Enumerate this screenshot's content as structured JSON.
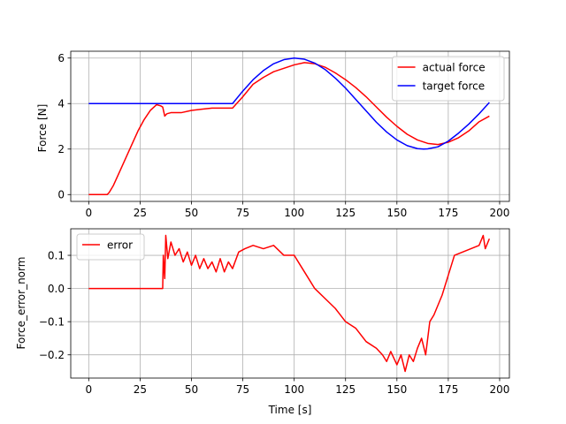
{
  "chart_data": [
    {
      "type": "line",
      "title": "",
      "xlabel": "",
      "ylabel": "Force [N]",
      "xlim": [
        -8.75,
        204.75
      ],
      "ylim": [
        -0.3,
        6.3
      ],
      "xticks": [
        0,
        25,
        50,
        75,
        100,
        125,
        150,
        175,
        200
      ],
      "yticks": [
        0,
        2,
        4,
        6
      ],
      "grid": true,
      "legend_position": "top-right",
      "series": [
        {
          "name": "actual force",
          "color": "#ff0000",
          "x": [
            0,
            5,
            9,
            10,
            12,
            15,
            18,
            21,
            24,
            27,
            30,
            33,
            35,
            36,
            37,
            38,
            40,
            45,
            50,
            55,
            60,
            65,
            70,
            75,
            80,
            85,
            90,
            95,
            100,
            105,
            110,
            115,
            120,
            125,
            130,
            135,
            140,
            145,
            150,
            155,
            160,
            165,
            170,
            175,
            180,
            185,
            190,
            195
          ],
          "y": [
            0,
            0,
            0,
            0.1,
            0.4,
            1.0,
            1.6,
            2.2,
            2.8,
            3.3,
            3.7,
            3.95,
            3.9,
            3.85,
            3.45,
            3.55,
            3.6,
            3.6,
            3.7,
            3.75,
            3.8,
            3.8,
            3.8,
            4.3,
            4.85,
            5.15,
            5.4,
            5.55,
            5.7,
            5.8,
            5.75,
            5.6,
            5.35,
            5.05,
            4.7,
            4.3,
            3.85,
            3.4,
            3.0,
            2.65,
            2.4,
            2.25,
            2.2,
            2.3,
            2.5,
            2.8,
            3.2,
            3.45
          ]
        },
        {
          "name": "target force",
          "color": "#0000ff",
          "x": [
            0,
            10,
            20,
            30,
            40,
            50,
            60,
            70,
            75,
            80,
            85,
            90,
            95,
            100,
            105,
            110,
            115,
            120,
            125,
            130,
            135,
            140,
            145,
            150,
            155,
            160,
            163,
            165,
            170,
            175,
            180,
            185,
            190,
            195
          ],
          "y": [
            4,
            4,
            4,
            4,
            4,
            4,
            4,
            4,
            4.55,
            5.05,
            5.45,
            5.75,
            5.93,
            6.0,
            5.95,
            5.78,
            5.5,
            5.12,
            4.68,
            4.18,
            3.68,
            3.18,
            2.75,
            2.4,
            2.15,
            2.02,
            2.0,
            2.01,
            2.1,
            2.35,
            2.7,
            3.1,
            3.55,
            4.05
          ]
        }
      ]
    },
    {
      "type": "line",
      "title": "",
      "xlabel": "Time [s]",
      "ylabel": "Force_error_norm",
      "xlim": [
        -8.75,
        204.75
      ],
      "ylim": [
        -0.27,
        0.18
      ],
      "xticks": [
        0,
        25,
        50,
        75,
        100,
        125,
        150,
        175,
        200
      ],
      "yticks": [
        -0.2,
        -0.1,
        0.0,
        0.1
      ],
      "ytick_labels": [
        "−0.2",
        "−0.1",
        "0.0",
        "0.1"
      ],
      "grid": true,
      "legend_position": "top-left",
      "series": [
        {
          "name": "error",
          "color": "#ff0000",
          "x": [
            0,
            36,
            36.3,
            37,
            37.5,
            38.5,
            40,
            42,
            44,
            46,
            48,
            50,
            52,
            54,
            56,
            58,
            60,
            62,
            64,
            66,
            68,
            70,
            73,
            76,
            80,
            85,
            90,
            95,
            100,
            103,
            106,
            110,
            115,
            120,
            125,
            130,
            135,
            140,
            143,
            145,
            147,
            150,
            152,
            154,
            156,
            158,
            160,
            162,
            164,
            166,
            168,
            170,
            172,
            175,
            178,
            182,
            186,
            190,
            192,
            193,
            195
          ],
          "y": [
            0,
            0,
            0.1,
            0.03,
            0.16,
            0.09,
            0.14,
            0.1,
            0.12,
            0.08,
            0.11,
            0.07,
            0.1,
            0.06,
            0.09,
            0.06,
            0.08,
            0.05,
            0.09,
            0.05,
            0.08,
            0.06,
            0.11,
            0.12,
            0.13,
            0.12,
            0.13,
            0.1,
            0.1,
            0.07,
            0.04,
            0.0,
            -0.03,
            -0.06,
            -0.1,
            -0.12,
            -0.16,
            -0.18,
            -0.2,
            -0.22,
            -0.19,
            -0.23,
            -0.2,
            -0.25,
            -0.2,
            -0.22,
            -0.18,
            -0.15,
            -0.2,
            -0.1,
            -0.08,
            -0.05,
            -0.02,
            0.04,
            0.1,
            0.11,
            0.12,
            0.13,
            0.16,
            0.12,
            0.15
          ]
        }
      ]
    }
  ]
}
